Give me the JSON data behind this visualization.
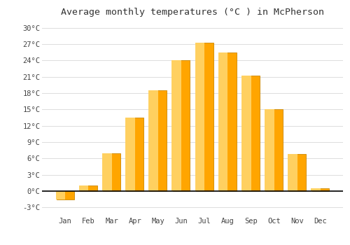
{
  "title": "Average monthly temperatures (°C ) in McPherson",
  "months": [
    "Jan",
    "Feb",
    "Mar",
    "Apr",
    "May",
    "Jun",
    "Jul",
    "Aug",
    "Sep",
    "Oct",
    "Nov",
    "Dec"
  ],
  "values": [
    -1.5,
    1.0,
    7.0,
    13.5,
    18.5,
    24.0,
    27.2,
    25.5,
    21.2,
    15.0,
    6.8,
    0.5
  ],
  "bar_color": "#FFA500",
  "bar_edge_color": "#CC8800",
  "background_color": "#FFFFFF",
  "grid_color": "#DDDDDD",
  "ylim": [
    -4.5,
    31.5
  ],
  "yticks": [
    -3,
    0,
    3,
    6,
    9,
    12,
    15,
    18,
    21,
    24,
    27,
    30
  ],
  "ytick_labels": [
    "-3°C",
    "0°C",
    "3°C",
    "6°C",
    "9°C",
    "12°C",
    "15°C",
    "18°C",
    "21°C",
    "24°C",
    "27°C",
    "30°C"
  ],
  "title_fontsize": 9.5,
  "tick_fontsize": 7.5,
  "axis_label_color": "#444444"
}
